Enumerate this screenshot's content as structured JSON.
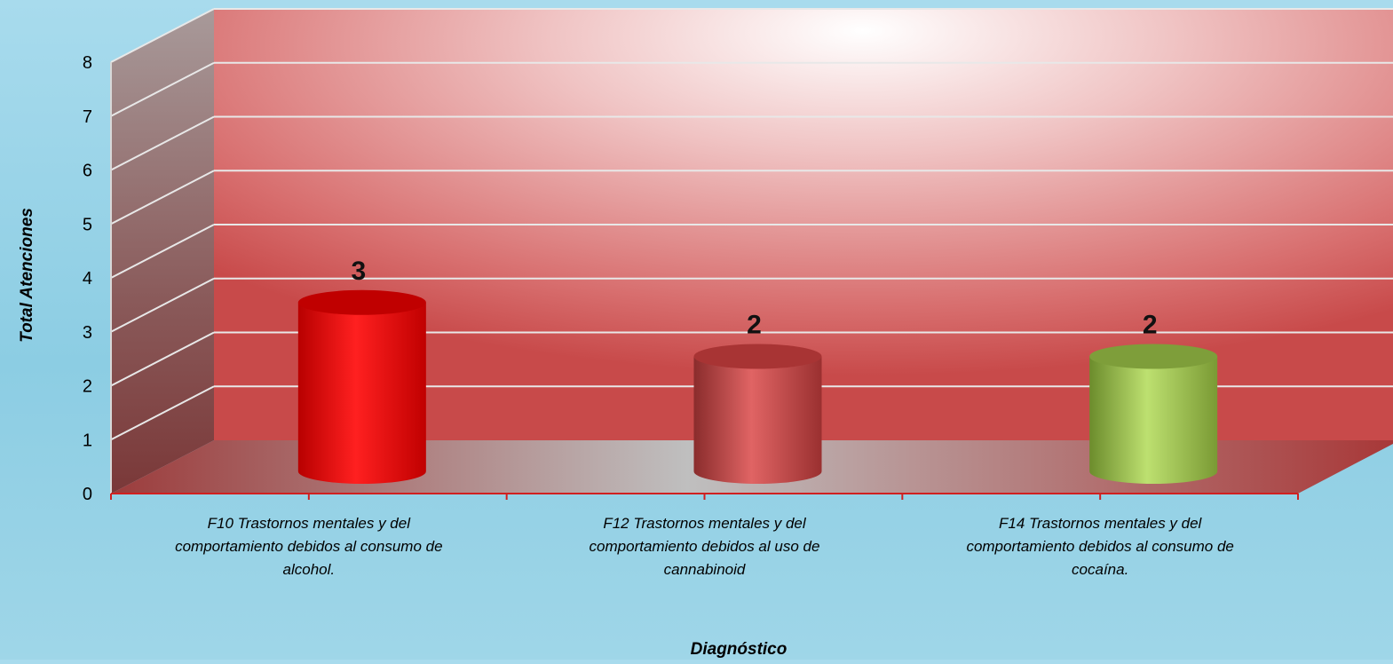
{
  "chart_data": {
    "type": "bar",
    "style": "3d-cylinder",
    "title": "",
    "xlabel": "Diagnóstico",
    "ylabel": "Total Atenciones",
    "ylim": [
      0,
      8
    ],
    "yticks": [
      0,
      1,
      2,
      3,
      4,
      5,
      6,
      7,
      8
    ],
    "grid": true,
    "categories": [
      [
        "F10 Trastornos mentales y del",
        "comportamiento debidos al consumo de",
        "alcohol."
      ],
      [
        "F12 Trastornos mentales y del",
        "comportamiento debidos al uso de",
        "cannabinoid"
      ],
      [
        "F14 Trastornos mentales y del",
        "comportamiento debidos al consumo de",
        "cocaína."
      ]
    ],
    "values": [
      3,
      2,
      2
    ],
    "data_labels": [
      "3",
      "2",
      "2"
    ],
    "bar_colors": [
      "#ff1414",
      "#c84848",
      "#a6d064"
    ]
  }
}
